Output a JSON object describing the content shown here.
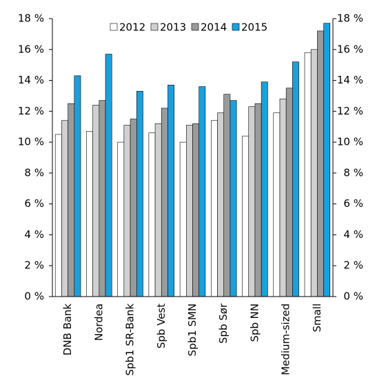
{
  "chart_data": {
    "type": "bar",
    "categories": [
      "DNB Bank",
      "Nordea",
      "Spb1 SR-Bank",
      "Spb Vest",
      "Spb1 SMN",
      "Spb Sør",
      "Spb NN",
      "Medium-sized",
      "Small"
    ],
    "series": [
      {
        "name": "2012",
        "color": "#ffffff",
        "values": [
          10.5,
          10.7,
          10.0,
          10.6,
          10.0,
          11.4,
          10.4,
          11.9,
          15.8
        ]
      },
      {
        "name": "2013",
        "color": "#d0d0d0",
        "values": [
          11.4,
          12.4,
          11.1,
          11.2,
          11.1,
          11.9,
          12.3,
          12.8,
          16.0
        ]
      },
      {
        "name": "2014",
        "color": "#9b9b9b",
        "values": [
          12.5,
          12.7,
          11.5,
          12.2,
          11.2,
          13.1,
          12.5,
          13.5,
          17.2
        ]
      },
      {
        "name": "2015",
        "color": "#1ba0dc",
        "values": [
          14.3,
          15.7,
          13.3,
          13.7,
          13.6,
          12.7,
          13.9,
          15.2,
          17.7
        ]
      }
    ],
    "ylim": [
      0,
      18
    ],
    "yticks": [
      {
        "value": 0,
        "label": "0 %"
      },
      {
        "value": 2,
        "label": "2 %"
      },
      {
        "value": 4,
        "label": "4 %"
      },
      {
        "value": 6,
        "label": "6 %"
      },
      {
        "value": 8,
        "label": "8 %"
      },
      {
        "value": 10,
        "label": "10 %"
      },
      {
        "value": 12,
        "label": "12 %"
      },
      {
        "value": 14,
        "label": "14 %"
      },
      {
        "value": 16,
        "label": "16 %"
      },
      {
        "value": 18,
        "label": "18 %"
      }
    ],
    "grid": false,
    "legend": "top"
  }
}
